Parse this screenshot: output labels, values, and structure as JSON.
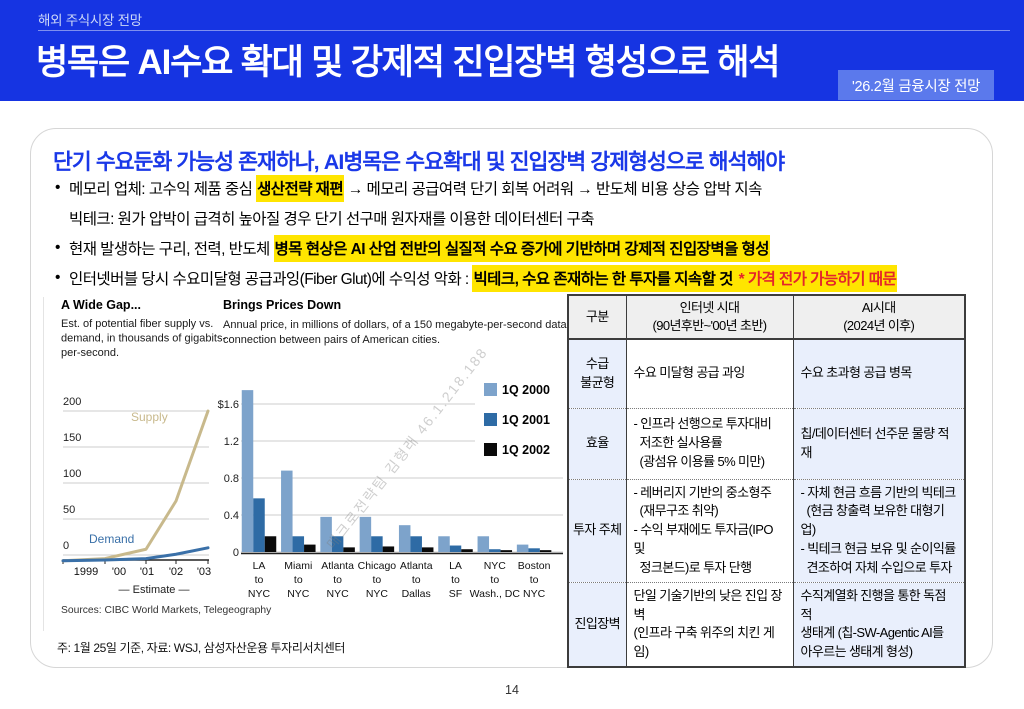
{
  "colors": {
    "banner_blue": "#1634e2",
    "badge_blue": "#5b79ec",
    "title_blue": "#1a38e8",
    "highlight_yellow": "#ffe500",
    "note_red": "#e4252b",
    "table_header_gray": "#efefef",
    "table_accent_blue": "#e9effc",
    "table_border": "#3c3c3c"
  },
  "header": {
    "eyebrow": "해외 주식시장 전망",
    "title": "병목은 AI수요 확대 및 강제적 진입장벽 형성으로 해석",
    "badge": "'26.2월 금융시장 전망"
  },
  "card": {
    "title": "단기 수요둔화 가능성 존재하나, AI병목은 수요확대 및 진입장벽 강제형성으로 해석해야",
    "bullets": [
      {
        "lines": [
          {
            "marker": "•",
            "segments": [
              {
                "text": "메모리 업체: 고수익 제품 중심 ",
                "style": "plain"
              },
              {
                "text": "생산전략 재편",
                "style": "hl"
              },
              {
                "text": " → 메모리 공급여력 단기 회복 어려워 → 반도체 비용 상승 압박 지속",
                "style": "plain"
              }
            ]
          },
          {
            "marker": "",
            "segments": [
              {
                "text": "빅테크: 원가 압박이 급격히 높아질 경우 단기 선구매 원자재를 이용한 데이터센터 구축",
                "style": "plain"
              }
            ]
          }
        ]
      },
      {
        "lines": [
          {
            "marker": "•",
            "segments": [
              {
                "text": "현재 발생하는 구리, 전력, 반도체 ",
                "style": "plain"
              },
              {
                "text": "병목 현상은 AI 산업 전반의 실질적 수요 증가에 기반하며 강제적 진입장벽을 형성",
                "style": "hl"
              }
            ]
          }
        ]
      },
      {
        "lines": [
          {
            "marker": "•",
            "segments": [
              {
                "text": "인터넷버블 당시 수요미달형 공급과잉(Fiber Glut)에 수익성 악화 : ",
                "style": "plain"
              },
              {
                "text": "빅테크, 수요 존재하는 한 투자를 지속할 것 ",
                "style": "hl"
              },
              {
                "text": "* 가격 전가 가능하기 때문",
                "style": "hlred"
              }
            ]
          }
        ]
      }
    ],
    "footnote": "주: 1월 25일 기준, 자료: WSJ, 삼성자산운용 투자리서치센터"
  },
  "chart_data": [
    {
      "type": "line",
      "title": "A Wide Gap...",
      "subtitle": "Est. of potential fiber supply vs. demand, in thousands of gigabits-per-second.",
      "subtitle_lines": [
        "Est. of potential fiber supply vs.",
        "demand, in thousands of gigabits-",
        "per-second."
      ],
      "x": [
        1999,
        2000,
        2001,
        2002,
        2003
      ],
      "x_tick_labels": [
        "1999",
        "'00",
        "'01",
        "'02",
        "'03"
      ],
      "series": [
        {
          "name": "Supply",
          "color": "#c8b98c",
          "values": [
            -8,
            -5,
            8,
            75,
            200
          ]
        },
        {
          "name": "Demand",
          "color": "#3a70a8",
          "values": [
            -8,
            -7,
            -5,
            1,
            10
          ]
        }
      ],
      "ylim": [
        0,
        200
      ],
      "yticks": [
        0,
        50,
        100,
        150,
        200
      ],
      "grid": true,
      "estimate_label": "— Estimate —",
      "source": "Sources: CIBC World Markets, Telegeography"
    },
    {
      "type": "bar",
      "title": "Brings Prices Down",
      "subtitle": "Annual price, in millions of dollars, of a 150 megabyte-per-second data connection between pairs of American cities.",
      "subtitle_lines": [
        "Annual price, in millions of dollars, of a 150 megabyte-per-second data",
        "connection between pairs of American cities."
      ],
      "categories": [
        [
          "LA",
          "to",
          "NYC"
        ],
        [
          "Miami",
          "to",
          "NYC"
        ],
        [
          "Atlanta",
          "to",
          "NYC"
        ],
        [
          "Chicago",
          "to",
          "NYC"
        ],
        [
          "Atlanta",
          "to",
          "Dallas"
        ],
        [
          "LA",
          "to",
          "SF"
        ],
        [
          "NYC",
          "to",
          "Wash., DC"
        ],
        [
          "Boston",
          "to",
          "NYC"
        ]
      ],
      "series": [
        {
          "name": "1Q 2000",
          "color": "#7da3cb",
          "values": [
            1.75,
            0.88,
            0.38,
            0.38,
            0.29,
            0.17,
            0.17,
            0.08
          ]
        },
        {
          "name": "1Q 2001",
          "color": "#2e6ba5",
          "values": [
            0.58,
            0.17,
            0.17,
            0.17,
            0.17,
            0.07,
            0.03,
            0.04
          ]
        },
        {
          "name": "1Q 2002",
          "color": "#0a0a0a",
          "values": [
            0.17,
            0.08,
            0.05,
            0.06,
            0.05,
            0.03,
            0.02,
            0.02
          ]
        }
      ],
      "ylim": [
        0,
        1.8
      ],
      "yticks": [
        1.6,
        1.2,
        0.8,
        0.4,
        0
      ],
      "ytick_labels": [
        "$1.6",
        "1.2",
        "0.8",
        "0.4",
        "0"
      ],
      "grid": true,
      "legend_position": "top-right",
      "watermark": "매크로전략팀 김형래 46.1.218.188"
    }
  ],
  "table": {
    "header": [
      "구분",
      "인터넷 시대\n(90년후반~'00년 초반)",
      "AI시대\n(2024년 이후)"
    ],
    "rows": [
      {
        "label": "수급\n불균형",
        "internet": "수요 미달형 공급 과잉",
        "ai": "수요 초과형 공급 병목"
      },
      {
        "label": "효율",
        "internet": "- 인프라 선행으로 투자대비\n  저조한 실사용률\n  (광섬유 이용률 5% 미만)",
        "ai": "칩/데이터센터 선주문 물량 적재"
      },
      {
        "label": "투자 주체",
        "internet": "- 레버리지 기반의 중소형주\n  (재무구조 취약)\n- 수익 부재에도 투자금(IPO 및\n  정크본드)로 투자 단행",
        "ai": "- 자체 현금 흐름 기반의 빅테크\n  (현금 창출력 보유한 대형기업)\n- 빅테크 현금 보유 및 순이익률\n  견조하여 자체 수입으로 투자"
      },
      {
        "label": "진입장벽",
        "internet": "단일 기술기반의 낮은 진입 장벽\n(인프라 구축 위주의 치킨 게임)",
        "ai": "수직계열화 진행을 통한 독점적\n생태계 (칩-SW-Agentic AI를\n아우르는 생태계 형성)"
      }
    ]
  },
  "page": {
    "number": "14"
  }
}
